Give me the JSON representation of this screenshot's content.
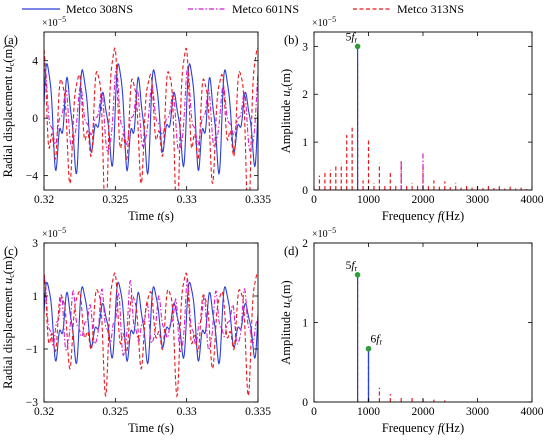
{
  "legend": [
    {
      "name": "Metco 308NS",
      "color": "#2a3fd6",
      "dash": ""
    },
    {
      "name": "Metco 601NS",
      "color": "#d21fd2",
      "dash": "5,2,1.5,2"
    },
    {
      "name": "Metco 313NS",
      "color": "#e8191e",
      "dash": "4,2.5"
    }
  ],
  "chart_data": [
    {
      "id": "a",
      "type": "line",
      "panel_label": "(a)",
      "xlabel": "Time t(s)",
      "ylabel": "Radial displacement uc(m)",
      "multiplier": "×10−5",
      "xlim": [
        0.32,
        0.335
      ],
      "ylim": [
        -5,
        6
      ],
      "xticks": [
        0.32,
        0.325,
        0.33,
        0.335
      ],
      "xticklabels": [
        "0.32",
        "0.325",
        "0.33",
        "0.335"
      ],
      "yticks": [
        -4,
        0,
        4
      ],
      "yticklabels": [
        "−4",
        "0",
        "4"
      ],
      "series": [
        {
          "name": "Metco 308NS",
          "peak_amplitude": 4.5,
          "dominant_freq_hz": 800
        },
        {
          "name": "Metco 601NS",
          "peak_amplitude": 3.0,
          "dominant_freq_hz": 800
        },
        {
          "name": "Metco 313NS",
          "peak_amplitude": 6.0,
          "dominant_freq_hz": 800
        }
      ]
    },
    {
      "id": "b",
      "type": "bar",
      "panel_label": "(b)",
      "xlabel": "Frequency f(Hz)",
      "ylabel": "Amplitude uc(m)",
      "multiplier": "×10−5",
      "xlim": [
        0,
        4000
      ],
      "ylim": [
        0,
        3.3
      ],
      "xticks": [
        0,
        1000,
        2000,
        3000,
        4000
      ],
      "xticklabels": [
        "0",
        "1000",
        "2000",
        "3000",
        "4000"
      ],
      "yticks": [
        0,
        1,
        2,
        3
      ],
      "yticklabels": [
        "0",
        "1",
        "2",
        "3"
      ],
      "annotations": [
        {
          "text": "5fr",
          "x": 800,
          "y": 3.0
        }
      ],
      "series": [
        {
          "name": "Metco 308NS",
          "x": [
            800
          ],
          "values": [
            3.0
          ]
        },
        {
          "name": "Metco 601NS",
          "x": [
            1600,
            2000
          ],
          "values": [
            0.6,
            0.8
          ]
        },
        {
          "name": "Metco 313NS",
          "x": [
            100,
            200,
            300,
            400,
            500,
            600,
            700,
            800,
            900,
            1000,
            1100,
            1200,
            1300,
            1400,
            1500,
            1600,
            1700,
            1800,
            1900,
            2000,
            2100,
            2200,
            2300,
            2400,
            2500,
            2600,
            2700,
            2800,
            2900,
            3000,
            3100,
            3200,
            3300,
            3400,
            3500,
            3600,
            3700,
            3800,
            3900
          ],
          "values": [
            0.3,
            0.37,
            0.42,
            0.5,
            0.55,
            1.15,
            1.3,
            2.65,
            0.2,
            1.05,
            0.15,
            0.55,
            0.12,
            0.38,
            0.12,
            0.6,
            0.1,
            0.15,
            0.1,
            0.5,
            0.08,
            0.2,
            0.07,
            0.18,
            0.06,
            0.15,
            0.05,
            0.12,
            0.05,
            0.12,
            0.04,
            0.1,
            0.04,
            0.08,
            0.03,
            0.07,
            0.03,
            0.05,
            0.02
          ]
        }
      ]
    },
    {
      "id": "c",
      "type": "line",
      "panel_label": "(c)",
      "xlabel": "Time t(s)",
      "ylabel": "Radial displacement uc(m)",
      "multiplier": "×10−5",
      "xlim": [
        0.32,
        0.335
      ],
      "ylim": [
        -3,
        3
      ],
      "xticks": [
        0.32,
        0.325,
        0.33,
        0.335
      ],
      "xticklabels": [
        "0.32",
        "0.325",
        "0.33",
        "0.335"
      ],
      "yticks": [
        -3,
        -1,
        1,
        3
      ],
      "yticklabels": [
        "−3",
        "−1",
        "1",
        "3"
      ],
      "series": [
        {
          "name": "Metco 308NS",
          "peak_amplitude": 1.8,
          "dominant_freq_hz": 800
        },
        {
          "name": "Metco 601NS",
          "peak_amplitude": 1.4,
          "dominant_freq_hz": 1000
        },
        {
          "name": "Metco 313NS",
          "peak_amplitude": 2.3,
          "dominant_freq_hz": 800
        }
      ]
    },
    {
      "id": "d",
      "type": "bar",
      "panel_label": "(d)",
      "xlabel": "Frequency f(Hz)",
      "ylabel": "Amplitude uc(m)",
      "multiplier": "×10−5",
      "xlim": [
        0,
        4000
      ],
      "ylim": [
        0,
        2
      ],
      "xticks": [
        0,
        1000,
        2000,
        3000,
        4000
      ],
      "xticklabels": [
        "0",
        "1000",
        "2000",
        "3000",
        "4000"
      ],
      "yticks": [
        0,
        1,
        2
      ],
      "yticklabels": [
        "0",
        "1",
        "2"
      ],
      "annotations": [
        {
          "text": "5fr",
          "x": 800,
          "y": 1.6
        },
        {
          "text": "6fr",
          "x": 1000,
          "y": 0.67
        }
      ],
      "series": [
        {
          "name": "Metco 308NS",
          "x": [
            800,
            1000
          ],
          "values": [
            1.6,
            0.67
          ]
        },
        {
          "name": "Metco 601NS",
          "x": [
            1000
          ],
          "values": [
            0.67
          ]
        },
        {
          "name": "Metco 313NS",
          "x": [
            800,
            1000,
            1200,
            1400,
            1600,
            1800,
            2000,
            2200,
            2400
          ],
          "values": [
            1.6,
            0.67,
            0.18,
            0.1,
            0.07,
            0.05,
            0.04,
            0.03,
            0.02
          ]
        }
      ]
    }
  ]
}
